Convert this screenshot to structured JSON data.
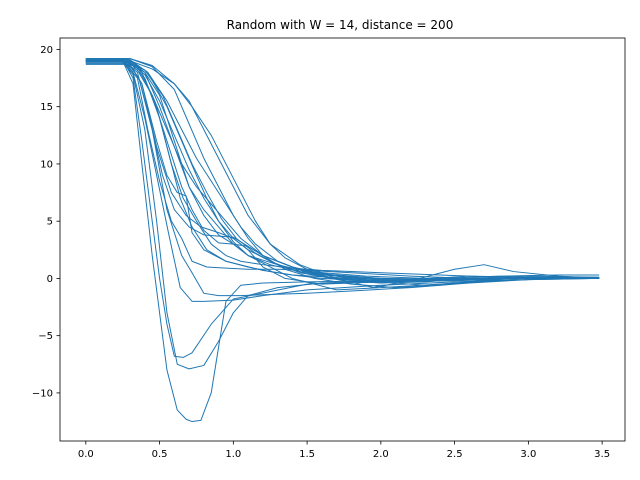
{
  "chart_data": {
    "type": "line",
    "title": "Random with W = 14, distance = 200",
    "xlabel": "",
    "ylabel": "",
    "xlim": [
      -0.175,
      3.655
    ],
    "ylim": [
      -14.2,
      21.0
    ],
    "xticks": [
      0.0,
      0.5,
      1.0,
      1.5,
      2.0,
      2.5,
      3.0,
      3.5
    ],
    "xtick_labels": [
      "0.0",
      "0.5",
      "1.0",
      "1.5",
      "2.0",
      "2.5",
      "3.0",
      "3.5"
    ],
    "yticks": [
      -10,
      -5,
      0,
      5,
      10,
      15,
      20
    ],
    "ytick_labels": [
      "−10",
      "−5",
      "0",
      "5",
      "10",
      "15",
      "20"
    ],
    "grid": false,
    "legend": "none",
    "line_color": "#1f77b4",
    "series": [
      {
        "x": [
          0,
          0.25,
          0.32,
          0.38,
          0.45,
          0.55,
          0.62,
          0.68,
          0.72,
          0.78,
          0.85,
          0.9,
          0.95,
          1.05,
          1.2,
          1.5,
          2.0,
          2.5,
          3.0,
          3.48
        ],
        "y": [
          19,
          19,
          17,
          10,
          2,
          -8,
          -11.5,
          -12.3,
          -12.5,
          -12.4,
          -10,
          -6,
          -2,
          -0.6,
          -0.4,
          -0.3,
          -0.2,
          -0.1,
          0,
          0
        ]
      },
      {
        "x": [
          0,
          0.25,
          0.32,
          0.38,
          0.45,
          0.5,
          0.55,
          0.6,
          0.66,
          0.72,
          0.85,
          1.0,
          1.5,
          2.0,
          2.5,
          3.0,
          3.48
        ],
        "y": [
          19.1,
          19.1,
          17.5,
          12,
          5,
          0,
          -4,
          -6.8,
          -6.9,
          -6.5,
          -4,
          -1.8,
          -0.5,
          -0.3,
          -0.1,
          0,
          0
        ]
      },
      {
        "x": [
          0,
          0.25,
          0.32,
          0.4,
          0.48,
          0.55,
          0.62,
          0.7,
          0.8,
          0.9,
          1.0,
          1.1,
          1.3,
          1.6,
          2.0,
          2.5,
          3.0,
          3.48
        ],
        "y": [
          18.9,
          18.9,
          17.8,
          13,
          5,
          -3,
          -7.5,
          -7.9,
          -7.6,
          -5.5,
          -3,
          -1.5,
          -0.8,
          -0.4,
          -0.2,
          -0.1,
          0,
          0
        ]
      },
      {
        "x": [
          0,
          0.25,
          0.32,
          0.4,
          0.48,
          0.56,
          0.64,
          0.72,
          0.8,
          1.0,
          1.2,
          1.5,
          2.0,
          2.5,
          3.0,
          3.48
        ],
        "y": [
          19.2,
          19.2,
          18,
          14,
          9,
          4,
          -0.8,
          -2,
          -2,
          -1.9,
          -1.5,
          -1,
          -0.6,
          -0.3,
          -0.1,
          0
        ]
      },
      {
        "x": [
          0,
          0.25,
          0.35,
          0.45,
          0.55,
          0.65,
          0.72,
          0.8,
          0.9,
          1.05,
          1.25,
          1.5,
          1.8,
          2.2,
          2.6,
          3.0,
          3.48
        ],
        "y": [
          19,
          19,
          18,
          13,
          6,
          2,
          0.5,
          -1.3,
          -1.5,
          -1.5,
          -1.4,
          -1.3,
          -1.1,
          -0.8,
          -0.4,
          -0.1,
          0
        ]
      },
      {
        "x": [
          0,
          0.28,
          0.38,
          0.48,
          0.55,
          0.62,
          0.68,
          0.72,
          0.8,
          0.95,
          1.2,
          1.4,
          1.8,
          2.3,
          2.8,
          3.48
        ],
        "y": [
          19.1,
          19.1,
          17,
          12,
          9,
          7.5,
          7.2,
          4,
          2.5,
          1.5,
          0.7,
          0.3,
          0,
          -0.1,
          0,
          0
        ]
      },
      {
        "x": [
          0,
          0.28,
          0.36,
          0.45,
          0.52,
          0.6,
          0.7,
          0.8,
          0.9,
          1.0,
          1.2,
          1.4,
          1.6,
          2.0,
          2.5,
          3.0,
          3.48
        ],
        "y": [
          18.9,
          18.9,
          17.5,
          13,
          9,
          6,
          4.5,
          3.8,
          3.7,
          3.6,
          2,
          1,
          0.4,
          0,
          -0.1,
          0,
          0
        ]
      },
      {
        "x": [
          0,
          0.28,
          0.38,
          0.48,
          0.58,
          0.68,
          0.78,
          0.9,
          1.0,
          1.1,
          1.2,
          1.35,
          1.6,
          2.0,
          2.5,
          3.0,
          3.48
        ],
        "y": [
          19,
          19,
          17,
          11.5,
          7.5,
          5.5,
          4.5,
          4,
          3.5,
          2.5,
          1,
          0,
          -0.5,
          -0.3,
          -0.2,
          0,
          0
        ]
      },
      {
        "x": [
          0,
          0.25,
          0.35,
          0.45,
          0.55,
          0.65,
          0.75,
          0.85,
          0.95,
          1.05,
          1.2,
          1.4,
          1.6,
          2.0,
          2.5,
          3.0,
          3.48
        ],
        "y": [
          18.8,
          18.8,
          18.2,
          16,
          13,
          10,
          8,
          6.5,
          5,
          3.5,
          2,
          1,
          0.3,
          0,
          -0.1,
          0,
          0
        ]
      },
      {
        "x": [
          0,
          0.28,
          0.4,
          0.5,
          0.6,
          0.7,
          0.8,
          0.9,
          1.0,
          1.1,
          1.25,
          1.4,
          1.7,
          2.0,
          2.4,
          2.8,
          3.2,
          3.48
        ],
        "y": [
          19.2,
          19.2,
          18,
          15,
          11.5,
          8,
          6,
          4.5,
          3,
          2,
          1,
          0,
          -1,
          -0.8,
          -0.5,
          -0.2,
          0,
          0
        ]
      },
      {
        "x": [
          0,
          0.25,
          0.35,
          0.45,
          0.55,
          0.65,
          0.72,
          0.8,
          0.9,
          1.0,
          1.1,
          1.3,
          1.5,
          1.9,
          2.3,
          2.8,
          3.48
        ],
        "y": [
          19,
          19,
          18.5,
          16,
          12,
          8,
          6,
          4.2,
          3.1,
          3,
          2,
          1.2,
          0.6,
          0.2,
          0,
          0,
          0
        ]
      },
      {
        "x": [
          0,
          0.3,
          0.4,
          0.5,
          0.6,
          0.7,
          0.8,
          0.9,
          1.0,
          1.1,
          1.2,
          1.4,
          1.6,
          1.9,
          2.2,
          2.6,
          3.0,
          3.48
        ],
        "y": [
          18.7,
          18.7,
          18,
          16,
          12,
          8,
          5.5,
          3.8,
          3,
          2.8,
          2,
          1,
          0.2,
          -0.3,
          -0.1,
          0.2,
          0.1,
          0
        ]
      },
      {
        "x": [
          0,
          0.3,
          0.42,
          0.55,
          0.65,
          0.75,
          0.82,
          0.9,
          1.0,
          1.1,
          1.25,
          1.45,
          1.7,
          2.1,
          2.6,
          3.0,
          3.48
        ],
        "y": [
          19.1,
          19.1,
          18,
          15,
          12,
          9,
          7,
          5,
          3.5,
          2.5,
          1.5,
          0.5,
          0,
          -0.2,
          -0.1,
          0,
          0
        ]
      },
      {
        "x": [
          0,
          0.3,
          0.4,
          0.5,
          0.6,
          0.7,
          0.8,
          0.9,
          1.0,
          1.1,
          1.25,
          1.45,
          1.7,
          2.0,
          2.3,
          2.6,
          2.9,
          3.2,
          3.48
        ],
        "y": [
          18.9,
          18.9,
          17.8,
          15.5,
          12.5,
          9.5,
          7,
          5,
          3.2,
          2,
          1.2,
          0.6,
          0.2,
          -0.3,
          -0.6,
          -0.3,
          0.1,
          0,
          0
        ]
      },
      {
        "x": [
          0,
          0.3,
          0.45,
          0.6,
          0.7,
          0.8,
          0.9,
          1.0,
          1.1,
          1.25,
          1.45,
          1.7,
          1.95,
          2.2,
          2.5,
          2.7,
          2.9,
          3.2,
          3.48
        ],
        "y": [
          19,
          19,
          18.3,
          17,
          15.5,
          13,
          10.5,
          8,
          5.5,
          3,
          1.2,
          0,
          -0.8,
          -0.2,
          0.8,
          1.2,
          0.6,
          0.2,
          0
        ]
      },
      {
        "x": [
          0,
          0.3,
          0.45,
          0.6,
          0.7,
          0.8,
          0.9,
          1.0,
          1.1,
          1.2,
          1.35,
          1.55,
          1.8,
          2.1,
          2.4,
          2.7,
          3.0,
          3.48
        ],
        "y": [
          19.2,
          19.2,
          18.5,
          16.5,
          13.5,
          10.5,
          8,
          5.5,
          3.5,
          2,
          0.8,
          0,
          -0.5,
          -0.8,
          -0.6,
          -0.2,
          0.1,
          0.1
        ]
      },
      {
        "x": [
          0,
          0.3,
          0.4,
          0.5,
          0.58,
          0.66,
          0.75,
          0.85,
          0.95,
          1.05,
          1.2,
          1.4,
          1.6,
          1.8,
          2.0,
          2.4,
          2.8,
          3.48
        ],
        "y": [
          18.8,
          18.8,
          17.5,
          14,
          10,
          7,
          5,
          3,
          2,
          1.5,
          1.2,
          0.9,
          0.7,
          0.6,
          0.5,
          0.3,
          0.1,
          0
        ]
      },
      {
        "x": [
          0,
          0.25,
          0.35,
          0.42,
          0.5,
          0.58,
          0.65,
          0.72,
          0.82,
          0.95,
          1.1,
          1.3,
          1.5,
          1.8,
          2.2,
          2.6,
          3.0,
          3.48
        ],
        "y": [
          19,
          19,
          17.5,
          13,
          8.5,
          5,
          3.5,
          1.5,
          1.0,
          0.9,
          0.8,
          0.8,
          0.7,
          0.5,
          0.2,
          0,
          0,
          0
        ]
      },
      {
        "x": [
          0,
          0.28,
          0.38,
          0.48,
          0.56,
          0.64,
          0.72,
          0.82,
          0.95,
          1.1,
          1.25,
          1.4,
          1.6,
          1.9,
          2.3,
          2.7,
          3.1,
          3.48
        ],
        "y": [
          19.1,
          19.1,
          18,
          15,
          11,
          7,
          4.5,
          2.5,
          1.5,
          1,
          0.6,
          0.3,
          0,
          -0.2,
          -0.1,
          0,
          0,
          0
        ]
      },
      {
        "x": [
          0,
          0.28,
          0.4,
          0.52,
          0.62,
          0.72,
          0.82,
          0.92,
          1.02,
          1.15,
          1.3,
          1.5,
          1.75,
          2.0,
          2.3,
          2.6,
          3.0,
          3.48
        ],
        "y": [
          18.9,
          18.9,
          18.2,
          16,
          13,
          10,
          7.5,
          5.2,
          3.5,
          2.2,
          1.2,
          0.4,
          -0.2,
          -0.4,
          -0.3,
          0,
          0.2,
          0.1
        ]
      },
      {
        "x": [
          0,
          0.3,
          0.42,
          0.55,
          0.65,
          0.75,
          0.85,
          0.95,
          1.05,
          1.15,
          1.3,
          1.5,
          1.7,
          2.0,
          2.3,
          2.7,
          3.1,
          3.48
        ],
        "y": [
          19,
          19,
          18,
          15.5,
          13,
          10.5,
          8.5,
          6.5,
          4.5,
          3,
          1.5,
          0.5,
          0,
          -0.2,
          -0.1,
          0,
          0,
          0
        ]
      },
      {
        "x": [
          0,
          0.3,
          0.45,
          0.6,
          0.72,
          0.85,
          0.95,
          1.05,
          1.15,
          1.25,
          1.35,
          1.5,
          1.7,
          2.0,
          2.4,
          2.8,
          3.2,
          3.48
        ],
        "y": [
          19.2,
          19.2,
          18.6,
          17,
          15,
          12.5,
          10,
          7.5,
          5,
          3,
          1.8,
          0.8,
          0.2,
          -0.1,
          0,
          0.2,
          0.3,
          0.3
        ]
      }
    ]
  }
}
